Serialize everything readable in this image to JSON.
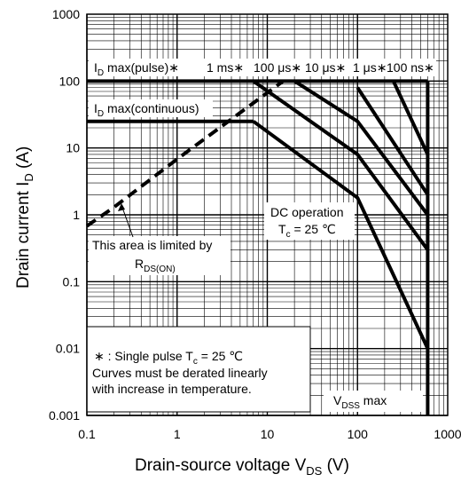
{
  "chart_data": {
    "type": "line",
    "xscale": "log",
    "yscale": "log",
    "xlim": [
      0.1,
      1000
    ],
    "ylim": [
      0.001,
      1000
    ],
    "grid": true,
    "xlabel": {
      "main": "Drain-source voltage  V",
      "sub": "DS",
      "unit": "  (V)"
    },
    "ylabel": {
      "main": "Drain current  I",
      "sub": "D",
      "unit": "  (A)"
    },
    "xticks": [
      {
        "value": 0.1,
        "label": "0.1"
      },
      {
        "value": 1,
        "label": "1"
      },
      {
        "value": 10,
        "label": "10"
      },
      {
        "value": 100,
        "label": "100"
      },
      {
        "value": 1000,
        "label": "1000"
      }
    ],
    "yticks": [
      {
        "value": 0.001,
        "label": "0.001"
      },
      {
        "value": 0.01,
        "label": "0.01"
      },
      {
        "value": 0.1,
        "label": "0.1"
      },
      {
        "value": 1,
        "label": "1"
      },
      {
        "value": 10,
        "label": "10"
      },
      {
        "value": 100,
        "label": "100"
      },
      {
        "value": 1000,
        "label": "1000"
      }
    ],
    "series": [
      {
        "id": "rds-on-limit",
        "dashed": true,
        "points": [
          [
            0.1,
            0.68
          ],
          [
            0.2,
            1.3
          ],
          [
            1,
            6.8
          ],
          [
            15,
            100
          ]
        ]
      },
      {
        "id": "id-pulse-limit",
        "points": [
          [
            0.1,
            100
          ],
          [
            600,
            100
          ]
        ]
      },
      {
        "id": "id-continuous-limit",
        "points": [
          [
            0.1,
            25
          ],
          [
            7,
            25
          ]
        ]
      },
      {
        "id": "curve-1ms",
        "points": [
          [
            7,
            100
          ],
          [
            100,
            8
          ],
          [
            600,
            0.3
          ]
        ]
      },
      {
        "id": "curve-100us",
        "points": [
          [
            20,
            100
          ],
          [
            100,
            25
          ],
          [
            600,
            1
          ]
        ]
      },
      {
        "id": "curve-10us",
        "points": [
          [
            100,
            80
          ],
          [
            600,
            2
          ]
        ]
      },
      {
        "id": "curve-1us",
        "points": [
          [
            250,
            100
          ],
          [
            600,
            8
          ]
        ]
      },
      {
        "id": "curve-dc",
        "points": [
          [
            7,
            25
          ],
          [
            100,
            1.8
          ],
          [
            600,
            0.01
          ]
        ]
      },
      {
        "id": "vdss-max",
        "points": [
          [
            600,
            100
          ],
          [
            600,
            0.001
          ]
        ]
      }
    ],
    "annotations": {
      "id_pulse": {
        "main": "I",
        "sub": "D",
        "rest": " max(pulse)∗"
      },
      "id_cont": {
        "main": "I",
        "sub": "D",
        "rest": " max(continuous)"
      },
      "t_1ms": "1 ms∗",
      "t_100us": "100 μs∗",
      "t_10us": "10 μs∗",
      "t_1us": "1 μs∗",
      "t_100ns": "100 ns∗",
      "dc_line1": "DC operation",
      "dc_line2": {
        "main": "T",
        "sub": "c",
        "rest": " = 25 ℃"
      },
      "rds_line1": "This area is limited by",
      "rds_line2": {
        "main": "R",
        "sub": "DS(ON)"
      },
      "note_line1": {
        "main": "∗ : Single pulse T",
        "sub": "c",
        "rest": " = 25 ℃"
      },
      "note_line2": "Curves must be derated linearly",
      "note_line3": "with increase in temperature.",
      "vdss": {
        "main": "V",
        "sub": "DSS",
        "rest": " max"
      }
    }
  }
}
